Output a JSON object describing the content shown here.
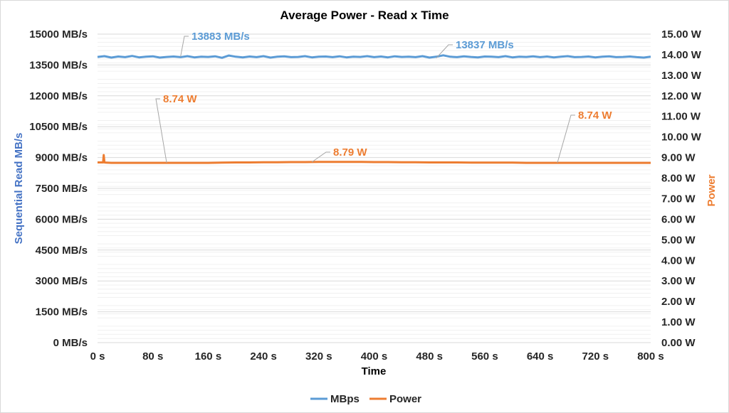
{
  "chart_data": {
    "type": "line",
    "title": "Average Power - Read x Time",
    "xlabel": "Time",
    "ylabel_left": "Sequential Read MB/s",
    "ylabel_right": "Power",
    "xlim": [
      0,
      800
    ],
    "ylim_left": [
      0,
      15000
    ],
    "ylim_right": [
      0,
      15
    ],
    "x_ticks": [
      "0 s",
      "80 s",
      "160 s",
      "240 s",
      "320 s",
      "400 s",
      "480 s",
      "560 s",
      "640 s",
      "720 s",
      "800 s"
    ],
    "y_left_ticks": [
      "0 MB/s",
      "1500 MB/s",
      "3000 MB/s",
      "4500 MB/s",
      "6000 MB/s",
      "7500 MB/s",
      "9000 MB/s",
      "10500 MB/s",
      "12000 MB/s",
      "13500 MB/s",
      "15000 MB/s"
    ],
    "y_right_ticks": [
      "0.00 W",
      "1.00 W",
      "2.00 W",
      "3.00 W",
      "4.00 W",
      "5.00 W",
      "6.00 W",
      "7.00 W",
      "8.00 W",
      "9.00 W",
      "10.00 W",
      "11.00 W",
      "12.00 W",
      "13.00 W",
      "14.00 W",
      "15.00 W"
    ],
    "grid": true,
    "legend_position": "bottom",
    "series": [
      {
        "name": "MBps",
        "axis": "left",
        "color": "#5b9bd5",
        "x": [
          0,
          10,
          20,
          30,
          40,
          50,
          60,
          70,
          80,
          90,
          100,
          110,
          120,
          130,
          140,
          150,
          160,
          170,
          180,
          190,
          200,
          210,
          220,
          230,
          240,
          250,
          260,
          270,
          280,
          290,
          300,
          310,
          320,
          330,
          340,
          350,
          360,
          370,
          380,
          390,
          400,
          410,
          420,
          430,
          440,
          450,
          460,
          470,
          480,
          490,
          500,
          510,
          520,
          530,
          540,
          550,
          560,
          570,
          580,
          590,
          600,
          610,
          620,
          630,
          640,
          650,
          660,
          670,
          680,
          690,
          700,
          710,
          720,
          730,
          740,
          750,
          760,
          770,
          780,
          790,
          800
        ],
        "values": [
          13890,
          13930,
          13860,
          13910,
          13880,
          13940,
          13870,
          13900,
          13920,
          13860,
          13890,
          13910,
          13880,
          13930,
          13870,
          13900,
          13890,
          13920,
          13850,
          13960,
          13900,
          13870,
          13910,
          13880,
          13930,
          13860,
          13900,
          13920,
          13880,
          13890,
          13930,
          13870,
          13900,
          13910,
          13880,
          13920,
          13870,
          13900,
          13890,
          13930,
          13880,
          13910,
          13870,
          13920,
          13890,
          13900,
          13880,
          13930,
          13860,
          13900,
          13970,
          13900,
          13880,
          13920,
          13890,
          13870,
          13910,
          13900,
          13880,
          13930,
          13870,
          13900,
          13890,
          13920,
          13880,
          13910,
          13870,
          13900,
          13930,
          13880,
          13890,
          13910,
          13870,
          13900,
          13920,
          13880,
          13890,
          13910,
          13880,
          13860,
          13900
        ]
      },
      {
        "name": "Power",
        "axis": "right",
        "color": "#ed7d31",
        "x": [
          0,
          5,
          8,
          9,
          10,
          12,
          20,
          40,
          60,
          80,
          100,
          120,
          140,
          160,
          180,
          200,
          220,
          240,
          260,
          280,
          300,
          320,
          340,
          360,
          380,
          400,
          420,
          440,
          460,
          480,
          500,
          520,
          540,
          560,
          580,
          600,
          620,
          640,
          660,
          680,
          700,
          720,
          740,
          760,
          780,
          800
        ],
        "values": [
          8.76,
          8.76,
          8.76,
          9.12,
          8.76,
          8.75,
          8.74,
          8.74,
          8.74,
          8.74,
          8.74,
          8.74,
          8.74,
          8.74,
          8.75,
          8.76,
          8.76,
          8.77,
          8.77,
          8.78,
          8.78,
          8.79,
          8.79,
          8.79,
          8.79,
          8.78,
          8.78,
          8.77,
          8.77,
          8.76,
          8.76,
          8.76,
          8.75,
          8.75,
          8.75,
          8.75,
          8.74,
          8.74,
          8.74,
          8.74,
          8.74,
          8.74,
          8.74,
          8.74,
          8.74,
          8.74
        ]
      }
    ],
    "annotations": [
      {
        "text": "13883 MB/s",
        "series": "MBps",
        "x": 120,
        "y": 13900
      },
      {
        "text": "13837 MB/s",
        "series": "MBps",
        "x": 490,
        "y": 13840
      },
      {
        "text": "8.74 W",
        "series": "Power",
        "x": 100,
        "y": 8.74
      },
      {
        "text": "8.79 W",
        "series": "Power",
        "x": 310,
        "y": 8.78
      },
      {
        "text": "8.74 W",
        "series": "Power",
        "x": 665,
        "y": 8.74
      }
    ]
  }
}
